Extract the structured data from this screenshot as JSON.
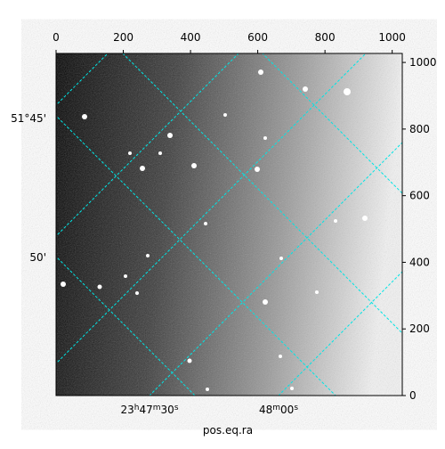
{
  "chart_data": {
    "type": "image",
    "xlabel": "pos.eq.ra",
    "xlim": [
      0,
      1030
    ],
    "xticks": [
      0,
      200,
      400,
      600,
      800,
      1000
    ],
    "ylim": [
      0,
      1027
    ],
    "yticks": [
      0,
      200,
      400,
      600,
      800,
      1000
    ],
    "dec_labels": [
      "51°45'",
      "50'"
    ],
    "ra_labels": [
      "23h47m30s",
      "48m00s"
    ]
  }
}
